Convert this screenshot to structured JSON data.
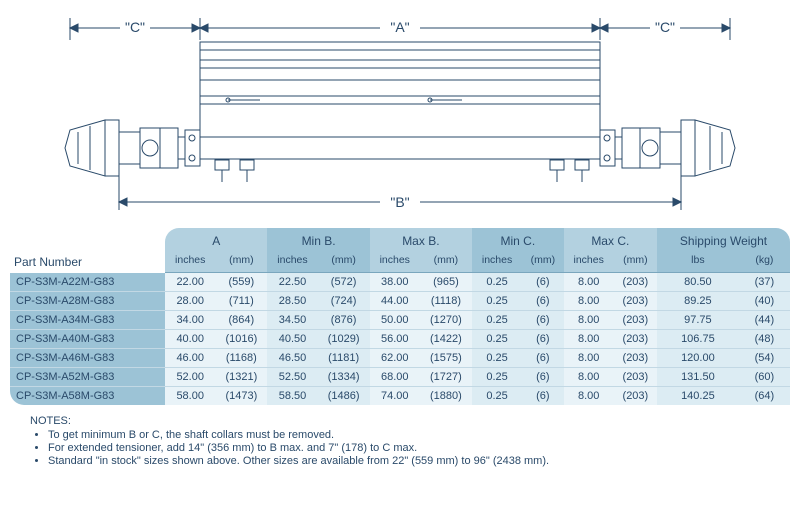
{
  "diagram": {
    "labels": {
      "A": "\"A\"",
      "B": "\"B\"",
      "Cleft": "\"C\"",
      "Cright": "\"C\""
    },
    "stroke": "#2a4a6a",
    "fill": "#ffffff"
  },
  "table": {
    "part_label": "Part Number",
    "columns": [
      {
        "title": "A",
        "sub1": "inches",
        "sub2": "(mm)"
      },
      {
        "title": "Min B.",
        "sub1": "inches",
        "sub2": "(mm)"
      },
      {
        "title": "Max B.",
        "sub1": "inches",
        "sub2": "(mm)"
      },
      {
        "title": "Min C.",
        "sub1": "inches",
        "sub2": "(mm)"
      },
      {
        "title": "Max C.",
        "sub1": "inches",
        "sub2": "(mm)"
      },
      {
        "title": "Shipping Weight",
        "sub1": "lbs",
        "sub2": "(kg)"
      }
    ],
    "rows": [
      {
        "part": "CP-S3M-A22M-G83",
        "v": [
          "22.00",
          "(559)",
          "22.50",
          "(572)",
          "38.00",
          "(965)",
          "0.25",
          "(6)",
          "8.00",
          "(203)",
          "80.50",
          "(37)"
        ]
      },
      {
        "part": "CP-S3M-A28M-G83",
        "v": [
          "28.00",
          "(711)",
          "28.50",
          "(724)",
          "44.00",
          "(1118)",
          "0.25",
          "(6)",
          "8.00",
          "(203)",
          "89.25",
          "(40)"
        ]
      },
      {
        "part": "CP-S3M-A34M-G83",
        "v": [
          "34.00",
          "(864)",
          "34.50",
          "(876)",
          "50.00",
          "(1270)",
          "0.25",
          "(6)",
          "8.00",
          "(203)",
          "97.75",
          "(44)"
        ]
      },
      {
        "part": "CP-S3M-A40M-G83",
        "v": [
          "40.00",
          "(1016)",
          "40.50",
          "(1029)",
          "56.00",
          "(1422)",
          "0.25",
          "(6)",
          "8.00",
          "(203)",
          "106.75",
          "(48)"
        ]
      },
      {
        "part": "CP-S3M-A46M-G83",
        "v": [
          "46.00",
          "(1168)",
          "46.50",
          "(1181)",
          "62.00",
          "(1575)",
          "0.25",
          "(6)",
          "8.00",
          "(203)",
          "120.00",
          "(54)"
        ]
      },
      {
        "part": "CP-S3M-A52M-G83",
        "v": [
          "52.00",
          "(1321)",
          "52.50",
          "(1334)",
          "68.00",
          "(1727)",
          "0.25",
          "(6)",
          "8.00",
          "(203)",
          "131.50",
          "(60)"
        ]
      },
      {
        "part": "CP-S3M-A58M-G83",
        "v": [
          "58.00",
          "(1473)",
          "58.50",
          "(1486)",
          "74.00",
          "(1880)",
          "0.25",
          "(6)",
          "8.00",
          "(203)",
          "140.25",
          "(64)"
        ]
      }
    ],
    "header_bg_colors": [
      "#b3d1e0",
      "#9cc3d6"
    ],
    "body_bg_colors": [
      "#e9f3f8",
      "#dcecf3"
    ],
    "part_bg_color": "#9cc3d6",
    "border_color": "#7aa6bd"
  },
  "notes": {
    "title": "NOTES:",
    "items": [
      "To get minimum B or C, the shaft collars must be removed.",
      "For extended tensioner, add 14\" (356 mm) to B max. and 7\" (178) to C max.",
      "Standard \"in stock\" sizes shown above.  Other sizes are available from 22\" (559 mm) to 96\" (2438 mm)."
    ]
  }
}
